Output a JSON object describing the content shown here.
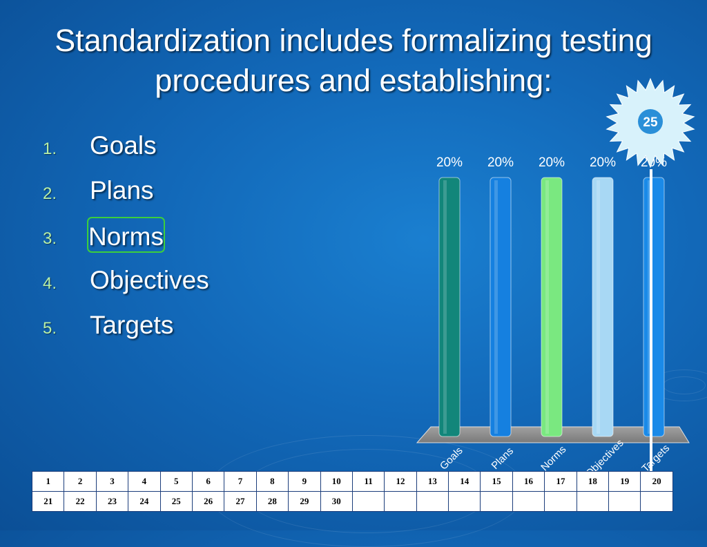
{
  "slide": {
    "title": "Standardization includes formalizing testing procedures and establishing:",
    "options": [
      {
        "num": "1.",
        "label": "Goals"
      },
      {
        "num": "2.",
        "label": "Plans"
      },
      {
        "num": "3.",
        "label": "Norms"
      },
      {
        "num": "4.",
        "label": "Objectives"
      },
      {
        "num": "5.",
        "label": "Targets"
      }
    ],
    "countdown": "25",
    "colors": {
      "background": "#1268b8",
      "list_numbers": "#b8f0a8",
      "correct_outline": "#3ccf3c",
      "burst_fill": "#d8f2fb"
    }
  },
  "chart_data": {
    "type": "bar",
    "categories": [
      "Goals",
      "Plans",
      "Norms",
      "Objectives",
      "Targets"
    ],
    "values": [
      20,
      20,
      20,
      20,
      20
    ],
    "value_labels": [
      "20%",
      "20%",
      "20%",
      "20%",
      "20%"
    ],
    "colors": [
      "#12867a",
      "#1580e0",
      "#7ae880",
      "#a8d8f4",
      "#1a8ae8"
    ],
    "ylim": [
      0,
      20
    ]
  },
  "response_grid": {
    "row1": [
      "1",
      "2",
      "3",
      "4",
      "5",
      "6",
      "7",
      "8",
      "9",
      "10",
      "11",
      "12",
      "13",
      "14",
      "15",
      "16",
      "17",
      "18",
      "19",
      "20"
    ],
    "row2": [
      "21",
      "22",
      "23",
      "24",
      "25",
      "26",
      "27",
      "28",
      "29",
      "30",
      "",
      "",
      "",
      "",
      "",
      "",
      "",
      "",
      "",
      ""
    ]
  }
}
